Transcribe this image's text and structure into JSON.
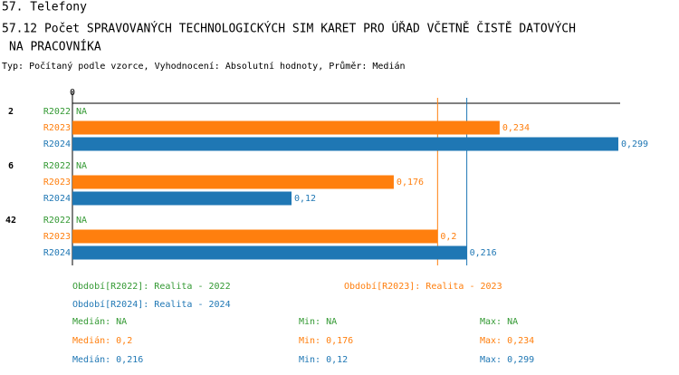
{
  "chart_data": {
    "type": "hbar",
    "section": "57. Telefony",
    "title": [
      "57.12 Počet SPRAVOVANÝCH TECHNOLOGICKÝCH SIM KARET PRO ÚŘAD VČETNĚ ČISTĚ DATOVÝCH",
      "NA PRACOVNÍKA"
    ],
    "subtitle": "Typ: Počítaný podle vzorce, Vyhodnocení: Absolutní hodnoty, Průměr: Medián",
    "categories": [
      "2",
      "6",
      "42"
    ],
    "xlim": [
      0,
      0.3
    ],
    "xticks": [
      0
    ],
    "series": [
      {
        "name": "R2022",
        "color": "#339933",
        "legend": "Období[R2022]: Realita - 2022",
        "values": [
          null,
          null,
          null
        ],
        "value_labels": [
          "NA",
          "NA",
          "NA"
        ],
        "median": null,
        "stats": [
          "Medián: NA",
          "Min: NA",
          "Max: NA"
        ]
      },
      {
        "name": "R2023",
        "color": "#ff7f0e",
        "legend": "Období[R2023]: Realita - 2023",
        "values": [
          0.234,
          0.176,
          0.2
        ],
        "value_labels": [
          "0,234",
          "0,176",
          "0,2"
        ],
        "median": 0.2,
        "stats": [
          "Medián: 0,2",
          "Min: 0,176",
          "Max: 0,234"
        ]
      },
      {
        "name": "R2024",
        "color": "#1f77b4",
        "legend": "Období[R2024]: Realita - 2024",
        "values": [
          0.299,
          0.12,
          0.216
        ],
        "value_labels": [
          "0,299",
          "0,12",
          "0,216"
        ],
        "median": 0.216,
        "stats": [
          "Medián: 0,216",
          "Min: 0,12",
          "Max: 0,299"
        ]
      }
    ]
  }
}
